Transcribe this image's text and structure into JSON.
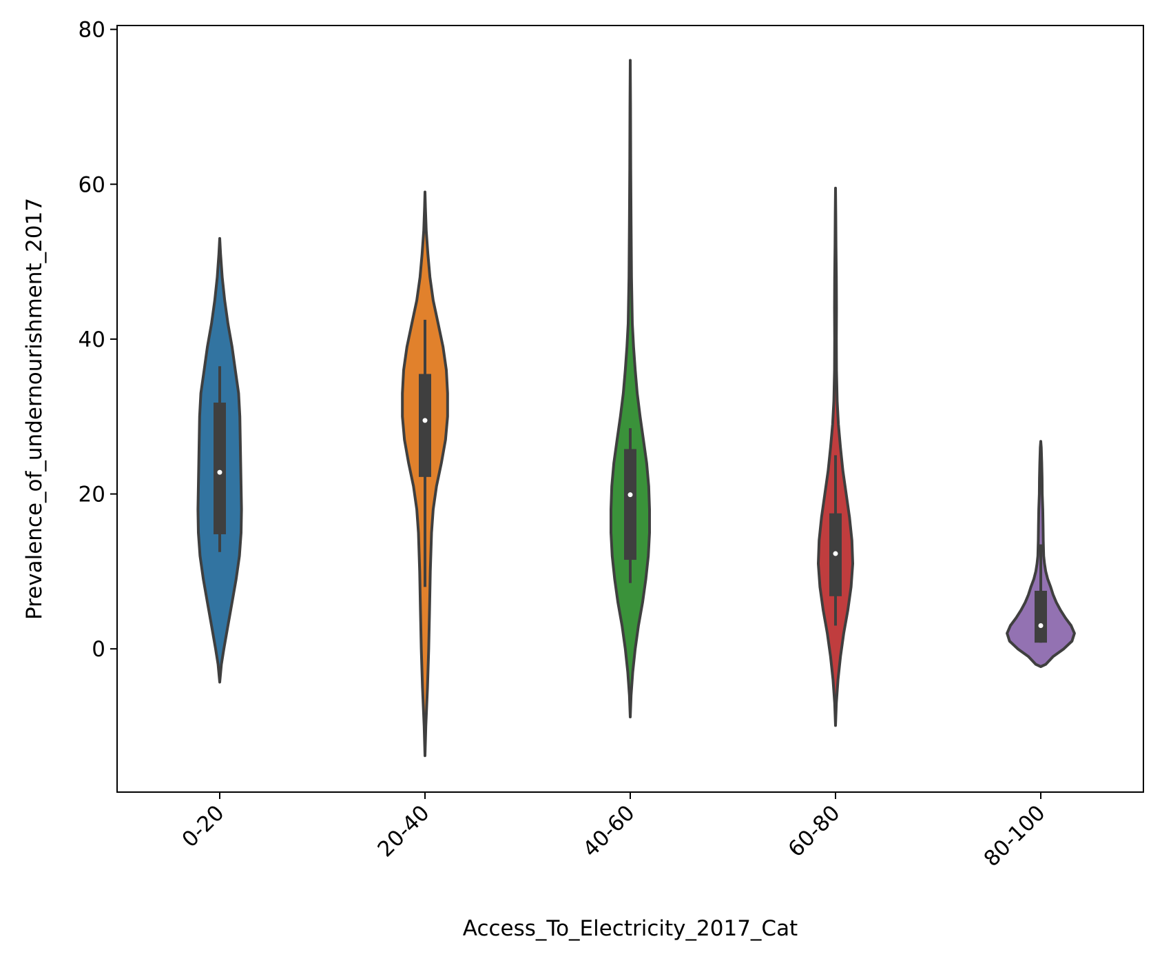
{
  "chart_data": {
    "type": "violin",
    "title": "",
    "xlabel": "Access_To_Electricity_2017_Cat",
    "ylabel": "Prevalence_of_undernourishment_2017",
    "ylim": [
      -18.5,
      80.5
    ],
    "yticks": [
      "0",
      "20",
      "40",
      "60",
      "80"
    ],
    "ytick_values": [
      0,
      20,
      40,
      60,
      80
    ],
    "categories": [
      "0-20",
      "20-40",
      "40-60",
      "60-80",
      "80-100"
    ],
    "grid": false,
    "legend": "none",
    "colors": [
      "#3274a1",
      "#e1812c",
      "#3a923a",
      "#c03d3e",
      "#9372b2"
    ],
    "edge_color": "#3f3f3f",
    "violins": [
      {
        "category": "0-20",
        "min": 12.5,
        "q1": 14.8,
        "median": 22.8,
        "q3": 31.8,
        "max": 36.5,
        "profile": [
          [
            -4.3,
            0.0
          ],
          [
            -2,
            0.02
          ],
          [
            0,
            0.05
          ],
          [
            3,
            0.1
          ],
          [
            6,
            0.15
          ],
          [
            9,
            0.2
          ],
          [
            12,
            0.24
          ],
          [
            15,
            0.26
          ],
          [
            18,
            0.265
          ],
          [
            21,
            0.26
          ],
          [
            24,
            0.255
          ],
          [
            27,
            0.25
          ],
          [
            30,
            0.245
          ],
          [
            33,
            0.23
          ],
          [
            36,
            0.19
          ],
          [
            39,
            0.15
          ],
          [
            42,
            0.1
          ],
          [
            45,
            0.06
          ],
          [
            48,
            0.03
          ],
          [
            51,
            0.01
          ],
          [
            53,
            0.0
          ]
        ]
      },
      {
        "category": "20-40",
        "min": 8.0,
        "q1": 22.2,
        "median": 29.5,
        "q3": 35.5,
        "max": 42.5,
        "profile": [
          [
            -13.8,
            0.0
          ],
          [
            -10,
            0.01
          ],
          [
            -5,
            0.03
          ],
          [
            0,
            0.045
          ],
          [
            5,
            0.055
          ],
          [
            10,
            0.065
          ],
          [
            15,
            0.08
          ],
          [
            18,
            0.1
          ],
          [
            21,
            0.14
          ],
          [
            24,
            0.2
          ],
          [
            27,
            0.25
          ],
          [
            30,
            0.275
          ],
          [
            33,
            0.275
          ],
          [
            36,
            0.26
          ],
          [
            39,
            0.22
          ],
          [
            42,
            0.16
          ],
          [
            45,
            0.1
          ],
          [
            48,
            0.06
          ],
          [
            51,
            0.035
          ],
          [
            54,
            0.015
          ],
          [
            57,
            0.005
          ],
          [
            59,
            0.0
          ]
        ]
      },
      {
        "category": "40-60",
        "min": 8.5,
        "q1": 11.5,
        "median": 19.9,
        "q3": 25.8,
        "max": 28.5,
        "profile": [
          [
            -8.8,
            0.0
          ],
          [
            -6,
            0.01
          ],
          [
            -3,
            0.03
          ],
          [
            0,
            0.06
          ],
          [
            3,
            0.1
          ],
          [
            6,
            0.15
          ],
          [
            9,
            0.19
          ],
          [
            12,
            0.22
          ],
          [
            15,
            0.235
          ],
          [
            18,
            0.235
          ],
          [
            21,
            0.225
          ],
          [
            24,
            0.2
          ],
          [
            27,
            0.16
          ],
          [
            30,
            0.12
          ],
          [
            33,
            0.085
          ],
          [
            36,
            0.06
          ],
          [
            39,
            0.04
          ],
          [
            42,
            0.025
          ],
          [
            48,
            0.015
          ],
          [
            55,
            0.01
          ],
          [
            62,
            0.006
          ],
          [
            70,
            0.003
          ],
          [
            76,
            0.0
          ]
        ]
      },
      {
        "category": "60-80",
        "min": 3.0,
        "q1": 6.8,
        "median": 12.3,
        "q3": 17.5,
        "max": 25.0,
        "profile": [
          [
            -9.9,
            0.0
          ],
          [
            -7,
            0.01
          ],
          [
            -4,
            0.03
          ],
          [
            -1,
            0.06
          ],
          [
            2,
            0.1
          ],
          [
            5,
            0.15
          ],
          [
            8,
            0.19
          ],
          [
            11,
            0.21
          ],
          [
            14,
            0.2
          ],
          [
            17,
            0.17
          ],
          [
            20,
            0.13
          ],
          [
            23,
            0.09
          ],
          [
            26,
            0.06
          ],
          [
            29,
            0.035
          ],
          [
            32,
            0.02
          ],
          [
            36,
            0.012
          ],
          [
            40,
            0.01
          ],
          [
            44,
            0.012
          ],
          [
            48,
            0.01
          ],
          [
            52,
            0.006
          ],
          [
            56,
            0.003
          ],
          [
            59.5,
            0.0
          ]
        ]
      },
      {
        "category": "80-100",
        "min": 0.8,
        "q1": 0.8,
        "median": 3.0,
        "q3": 7.5,
        "max": 13.5,
        "profile": [
          [
            -2.3,
            0.0
          ],
          [
            -2,
            0.06
          ],
          [
            -1,
            0.15
          ],
          [
            0,
            0.28
          ],
          [
            1,
            0.38
          ],
          [
            2,
            0.41
          ],
          [
            3,
            0.37
          ],
          [
            4,
            0.3
          ],
          [
            5,
            0.24
          ],
          [
            6,
            0.19
          ],
          [
            7,
            0.15
          ],
          [
            8,
            0.12
          ],
          [
            9,
            0.085
          ],
          [
            10,
            0.06
          ],
          [
            11,
            0.045
          ],
          [
            12,
            0.035
          ],
          [
            14,
            0.03
          ],
          [
            16,
            0.028
          ],
          [
            18,
            0.024
          ],
          [
            20,
            0.018
          ],
          [
            22,
            0.016
          ],
          [
            24,
            0.012
          ],
          [
            26,
            0.006
          ],
          [
            26.8,
            0.0
          ]
        ]
      }
    ]
  }
}
